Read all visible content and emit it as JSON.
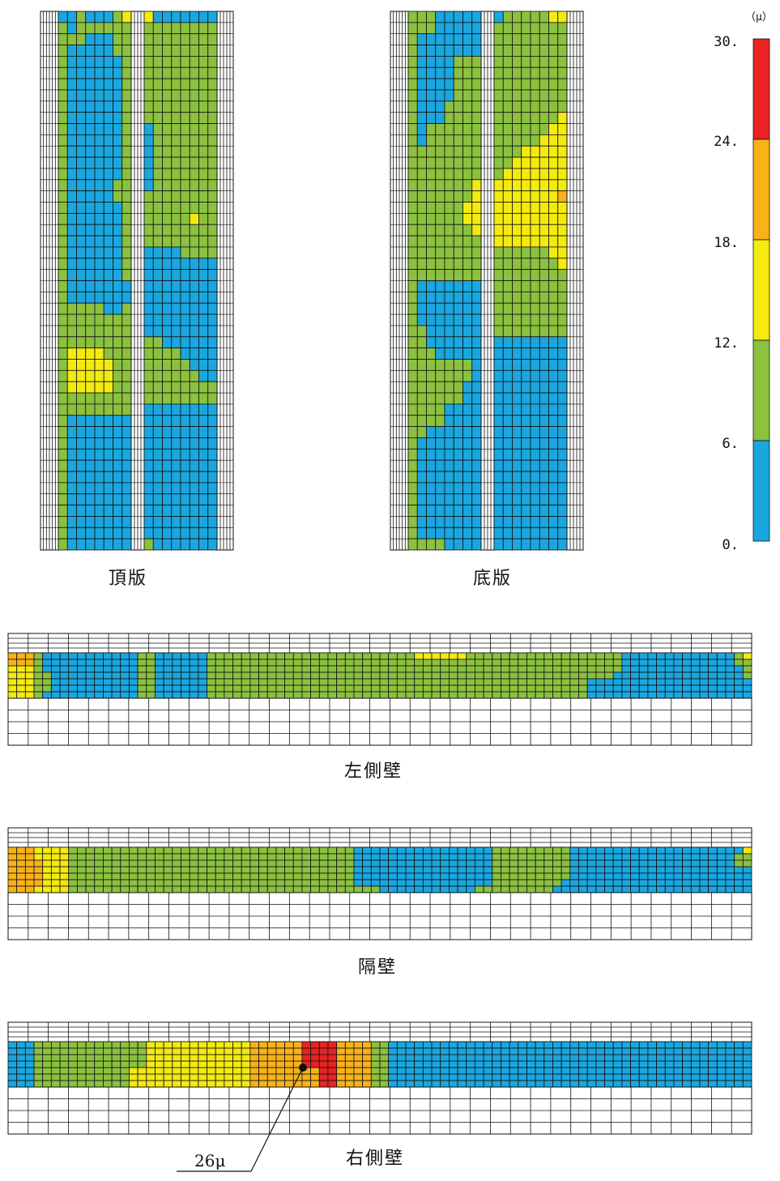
{
  "colors": {
    "blue": "#1aa7e0",
    "green": "#8bc13f",
    "yellow": "#f4ea10",
    "orange": "#f8b218",
    "red": "#ea2222",
    "grid": "#111111"
  },
  "legend": {
    "unit": "（μ）",
    "ticks": [
      "30.",
      "24.",
      "18.",
      "12.",
      "6.",
      "0."
    ],
    "bands": [
      "red",
      "orange",
      "yellow",
      "green",
      "blue"
    ]
  },
  "panels": {
    "top_slab": {
      "label": "頂版",
      "left_block": [
        "BBGBBBGY",
        "GBGGGGGG",
        "GGGBBBGG",
        "GBBBBBGG",
        "GBBBBBBG",
        "GBBBBBBG",
        "GBBBBBBG",
        "GBBBBBBG",
        "GBBBBBBG",
        "GBBBBBBG",
        "GBBBBBBG",
        "GBBBBBBG",
        "GBBBBBBG",
        "GBBBBBBG",
        "GBBBBBBG",
        "GBBBBBGG",
        "GBBBBBGG",
        "GBBBBBBG",
        "GBBBBBBG",
        "GBBBBBBG",
        "GBBBBBBG",
        "GBBBBBBG",
        "GBBBBBBG",
        "GBBBBBBG",
        "GBBBBBBB",
        "GBBBBBBB",
        "GGGGGBBG",
        "GGGGGGGG",
        "GGGGGGGG",
        "GGGGGGGG",
        "GYYYYGGG",
        "GYYYYYGG",
        "GYYYYYGG",
        "GYYYYYGG",
        "GGGGGGGG",
        "GGGGGGGG",
        "GBBBBBBB",
        "GBBBBBBB",
        "GBBBBBBB",
        "GBBBBBBB",
        "GBBBBBBB",
        "GBBBBBBB",
        "GBBBBBBB",
        "GBBBBBBB",
        "GBBBBBBB",
        "GBBBBBBB",
        "GBBBBBBB",
        "GBBBBBBB"
      ],
      "right_block": [
        "YBBBBBBB",
        "GGGGGGGG",
        "GGGGGGGG",
        "GGGGGGGG",
        "GGGGGGGG",
        "GGGGGGGG",
        "GGGGGGGG",
        "GGGGGGGG",
        "GGGGGGGG",
        "GGGGGGGG",
        "BGGGGGGG",
        "BGGGGGGG",
        "BGGGGGGG",
        "BGGGGGGG",
        "BGGGGGGG",
        "BGGGGGGG",
        "GGGGGGGG",
        "GGGGGGGG",
        "GGGGGYGG",
        "GGGGGGGG",
        "GGGGGGGG",
        "BBBBGGGG",
        "BBBBBBBB",
        "BBBBBBBB",
        "BBBBBBBB",
        "BBBBBBBB",
        "BBBBBBBB",
        "BBBBBBBB",
        "BBBBBBBB",
        "GGBBBBBB",
        "GGGGBBBB",
        "GGGGGBBB",
        "GGGGGGBB",
        "GGGGGGGG",
        "GGGGGGGG",
        "BBBBBBBB",
        "BBBBBBBB",
        "BBBBBBBB",
        "BBBBBBBB",
        "BBBBBBBB",
        "BBBBBBBB",
        "BBBBBBBB",
        "BBBBBBBB",
        "BBBBBBBB",
        "BBBBBBBB",
        "BBBBBBBB",
        "BBBBBBBB",
        "GBBBBBBB"
      ]
    },
    "bottom_slab": {
      "label": "底版",
      "left_block": [
        "GGGBBBBB",
        "GGGBBBBB",
        "GBBBBBBB",
        "GBBBBBBB",
        "GBBBBGGG",
        "GBBBBGGG",
        "GBBBBGGG",
        "GBBBBGGG",
        "GBBBGGGG",
        "GBBBGGGG",
        "GBGGGGGG",
        "GBGGGGGG",
        "GGGGGGGG",
        "GGGGGGGG",
        "GGGGGGGG",
        "GGGGGGGY",
        "GGGGGGGY",
        "GGGGGGYY",
        "GGGGGGYY",
        "GGGGGGGY",
        "GGGGGGGG",
        "GGGGGGGG",
        "GGGGGGGG",
        "GGGGGGGG",
        "GBBBBBBB",
        "GBBBBBBB",
        "GBBBBBBB",
        "GBBBBBBB",
        "GGBBBBBB",
        "GGBBBBBB",
        "GGGBBBBB",
        "GGGGGGGB",
        "GGGGGGGB",
        "GGGGGGBB",
        "GGGGGGBB",
        "GGGGBBBB",
        "GGGGBBBB",
        "GGBBBBBB",
        "GBBBBBBB",
        "GBBBBBBB",
        "GBBBBBBB",
        "GBBBBBBB",
        "GBBBBBBB",
        "GBBBBBBB",
        "GBBBBBBB",
        "GBBBBBBB",
        "GBBBBBBB",
        "GGGGBBBB"
      ],
      "right_block": [
        "BGGGGGYY",
        "GGGGGGGG",
        "GGGGGGGG",
        "GGGGGGGG",
        "GGGGGGGG",
        "GGGGGGGG",
        "GGGGGGGG",
        "GGGGGGGG",
        "GGGGGGGG",
        "GGGGGGGY",
        "GGGGGGYY",
        "GGGGGYYY",
        "GGGYYYYY",
        "GGYYYYYY",
        "GYYYYYYY",
        "YYYYYYYY",
        "YYYYYYYO",
        "YYYYYYYY",
        "YYYYYYYY",
        "YYYYYYYY",
        "YYYYYYYY",
        "GGGGGGYY",
        "GGGGGGGY",
        "GGGGGGGG",
        "GGGGGGGG",
        "GGGGGGGG",
        "GGGGGGGG",
        "GGGGGGGG",
        "GGGGGGGG",
        "BBBBBBBB",
        "BBBBBBBB",
        "BBBBBBBB",
        "BBBBBBBB",
        "BBBBBBBB",
        "BBBBBBBB",
        "BBBBBBBB",
        "BBBBBBBB",
        "BBBBBBBB",
        "BBBBBBBB",
        "BBBBBBBB",
        "BBBBBBBB",
        "BBBBBBBB",
        "BBBBBBBB",
        "BBBBBBBB",
        "BBBBBBBB",
        "BBBBBBBB",
        "BBBBBBBB",
        "BBBBBBBB"
      ]
    },
    "left_wall": {
      "label": "左側壁",
      "rows": [
        "OOOGBBBBBBBBBBBGGBBBBBBGGGGGGGGGGGGGGGGGGGGGGGGYYYYYYGGGGGGGGGGGGGGGGGGBBBBBBBBBBBBBGY",
        "OOOGBBBBBBBBBBBGGBBBBBBGGGGGGGGGGGGGGGGGGGGGGGGGGGGGGGGGGGGGGGGGGGGGGGGBBBBBBBBBBBBBGG",
        "YYYGBBBBBBBBBBBGGBBBBBBGGGGGGGGGGGGGGGGGGGGGGGGGGGGGGGGGGGGGGGGGGGGGGGGBBBBBBBBBBBBBBG",
        "YYYGGBBBBBBBBBBGGBBBBBBGGGGGGGGGGGGGGGGGGGGGGGGGGGGGGGGGGGGGGGGGGGGGGGBBBBBBBBBBBBBBBG",
        "YYYGGBBBBBBBBBBGGBBBBBBGGGGGGGGGGGGGGGGGGGGGGGGGGGGGGGGGGGGGGGGGGGGBBBBBBBBBBBBBBBBBBB",
        "YYYGGBBBBBBBBBBGGBBBBBBGGGGGGGGGGGGGGGGGGGGGGGGGGGGGGGGGGGGGGGGGGGGBBBBBBBBBBBBBBBBBBB",
        "YYYGBBBBBBBBBBBGGBBBBBBGGGGGGGGGGGGGGGGGGGGGGGGGGGGGGGGGGGGGGGGGGGGBBBBBBBBBBBBBBBBBBB"
      ]
    },
    "partition_wall": {
      "label": "隔壁",
      "rows": [
        "OOOYYYYGGGGGGGGGGGGGGGGGGGGGGGGGGGGGGGGGBBBBBBBBBBBBBBBBGGGGGGGGGBBBBBBBBBBBBBBBBBBBBY",
        "OOOYYYYGGGGGGGGGGGGGGGGGGGGGGGGGGGGGGGGGBBBBBBBBBBBBBBBBGGGGGGGGGBBBBBBBBBBBBBBBBBBBGG",
        "OOOOYYYGGGGGGGGGGGGGGGGGGGGGGGGGGGGGGGGGBBBBBBBBBBBBBBBBGGGGGGGGGBBBBBBBBBBBBBBBBBBBGG",
        "OOOOYYYGGGGGGGGGGGGGGGGGGGGGGGGGGGGGGGGGBBBBBBBBBBBBBBBBGGGGGGGGGBBBBBBBBBBBBBBBBBBBBB",
        "OOOOYYYGGGGGGGGGGGGGGGGGGGGGGGGGGGGGGGGGBBBBBBBBBBBBBBBBGGGGGGGGGBBBBBBBBBBBBBBBBBBBBB",
        "OOOOYYYGGGGGGGGGGGGGGGGGGGGGGGGGGGGGGGGGBBBBBBBBBBBBBBBBGGGGGGGGBBBBBBBBBBBBBBBBBBBBBB",
        "OOOYYYYGGGGGGGGGGGGGGGGGGGGGGGGGGGGGGGGGGGGBBBBBBBBBBBGGGGGGGGGBBBBBBBBBBBBBBBBBBBBBBB"
      ]
    },
    "right_wall": {
      "label": "右側壁",
      "rows": [
        "BBBGGGGGGGGGGGGGYYYYYYYYYYYYOOOOOORRRROOOOGGBBBBBBBBBBBBBBBBBBBBBBBBBBBBBBBBBBBBBBBBBB",
        "BBBGGGGGGGGGGGGGYYYYYYYYYYYYOOOOOORRRROOOOGGBBBBBBBBBBBBBBBBBBBBBBBBBBBBBBBBBBBBBBBBBB",
        "BBBGGGGGGGGGGGGGYYYYYYYYYYYYOOOOOORRRROOOOGGBBBBBBBBBBBBBBBBBBBBBBBBBBBBBBBBBBBBBBBBBB",
        "BBBGGGGGGGGGGGGGYYYYYYYYYYYYOOOOOORRRROOOOGGBBBBBBBBBBBBBBBBBBBBBBBBBBBBBBBBBBBBBBBBBB",
        "BBBGGGGGGGGGGGYYYYYYYYYYYYYYOOOOOOOORROOOOGGBBBBBBBBBBBBBBBBBBBBBBBBBBBBBBBBBBBBBBBBBB",
        "BBBGGGGGGGGGGGYYYYYYYYYYYYYYOOOOOOOORROOOOGGBBBBBBBBBBBBBBBBBBBBBBBBBBBBBBBBBBBBBBBBBB",
        "BBBGGGGGGGGGGGYYYYYYYYYYYYYYOOOOOOOORROOOOGGBBBBBBBBBBBBBBBBBBBBBBBBBBBBBBBBBBBBBBBBBB"
      ]
    }
  },
  "annotation": {
    "text": "26μ",
    "number": "26",
    "unit": "μ"
  }
}
